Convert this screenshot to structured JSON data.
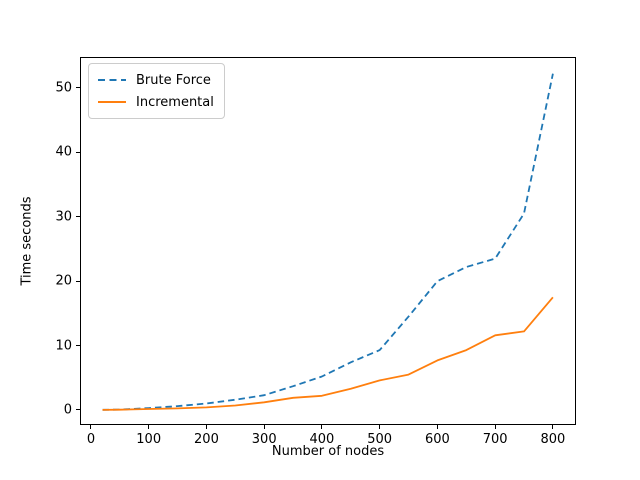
{
  "chart_data": {
    "type": "line",
    "title": "",
    "xlabel": "Number of nodes",
    "ylabel": "Time seconds",
    "grid": false,
    "legend_position": "upper-left",
    "xlim": [
      -19,
      840
    ],
    "ylim": [
      -2.33,
      54.8
    ],
    "x_ticks": [
      0,
      100,
      200,
      300,
      400,
      500,
      600,
      700,
      800
    ],
    "y_ticks": [
      0,
      10,
      20,
      30,
      40,
      50
    ],
    "x": [
      20,
      50,
      100,
      150,
      200,
      250,
      300,
      350,
      400,
      450,
      500,
      550,
      600,
      650,
      700,
      750,
      800
    ],
    "series": [
      {
        "name": "Brute Force",
        "color": "#1f77b4",
        "line_style": "dashed",
        "values": [
          0.03,
          0.06,
          0.3,
          0.6,
          1.0,
          1.6,
          2.3,
          3.7,
          5.2,
          7.4,
          9.3,
          14.5,
          20.0,
          22.2,
          23.5,
          30.5,
          52.2
        ]
      },
      {
        "name": "Incremental",
        "color": "#ff7f0e",
        "line_style": "solid",
        "values": [
          0.02,
          0.04,
          0.15,
          0.25,
          0.4,
          0.7,
          1.2,
          1.9,
          2.2,
          3.3,
          4.6,
          5.5,
          7.7,
          9.3,
          11.6,
          12.2,
          17.5
        ]
      }
    ]
  }
}
